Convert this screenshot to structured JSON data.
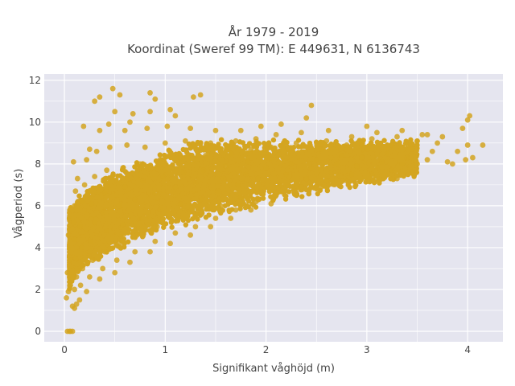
{
  "chart_data": {
    "type": "scatter",
    "title": [
      "År 1979 - 2019",
      "Koordinat (Sweref 99 TM): E 449631, N 6136743"
    ],
    "xlabel": "Signifikant våghöjd (m)",
    "ylabel": "Vågperiod (s)",
    "xlim": [
      -0.2,
      4.35
    ],
    "ylim": [
      -0.5,
      12.3
    ],
    "xticks": [
      0,
      1,
      2,
      3,
      4
    ],
    "yticks": [
      0,
      2,
      4,
      6,
      8,
      10,
      12
    ],
    "grid": true,
    "marker_color": "#D4A520",
    "background_color": "#E5E5EF",
    "points": [
      [
        0.03,
        0.0
      ],
      [
        0.05,
        0.0
      ],
      [
        0.08,
        0.0
      ],
      [
        0.06,
        0.0
      ],
      [
        0.02,
        1.6
      ],
      [
        0.04,
        1.9
      ],
      [
        0.06,
        2.2
      ],
      [
        0.03,
        2.8
      ],
      [
        0.05,
        3.4
      ],
      [
        0.04,
        4.6
      ],
      [
        0.05,
        5.4
      ],
      [
        0.08,
        1.2
      ],
      [
        0.1,
        1.1
      ],
      [
        0.12,
        1.3
      ],
      [
        0.1,
        2.0
      ],
      [
        0.12,
        2.6
      ],
      [
        0.11,
        3.5
      ],
      [
        0.1,
        4.4
      ],
      [
        0.09,
        5.2
      ],
      [
        0.1,
        6.0
      ],
      [
        0.11,
        6.7
      ],
      [
        0.13,
        7.3
      ],
      [
        0.09,
        8.1
      ],
      [
        0.15,
        1.5
      ],
      [
        0.16,
        2.2
      ],
      [
        0.18,
        3.0
      ],
      [
        0.17,
        4.0
      ],
      [
        0.16,
        5.0
      ],
      [
        0.18,
        6.2
      ],
      [
        0.2,
        7.0
      ],
      [
        0.22,
        8.2
      ],
      [
        0.19,
        9.8
      ],
      [
        0.25,
        8.7
      ],
      [
        0.22,
        1.9
      ],
      [
        0.25,
        2.6
      ],
      [
        0.28,
        3.4
      ],
      [
        0.26,
        4.3
      ],
      [
        0.3,
        5.2
      ],
      [
        0.27,
        6.1
      ],
      [
        0.3,
        7.4
      ],
      [
        0.32,
        8.6
      ],
      [
        0.35,
        9.6
      ],
      [
        0.3,
        11.0
      ],
      [
        0.35,
        11.2
      ],
      [
        0.35,
        2.5
      ],
      [
        0.38,
        3.0
      ],
      [
        0.4,
        3.8
      ],
      [
        0.42,
        4.8
      ],
      [
        0.38,
        5.7
      ],
      [
        0.4,
        6.6
      ],
      [
        0.42,
        7.7
      ],
      [
        0.45,
        8.8
      ],
      [
        0.44,
        9.9
      ],
      [
        0.5,
        10.5
      ],
      [
        0.48,
        11.6
      ],
      [
        0.55,
        11.3
      ],
      [
        0.5,
        2.8
      ],
      [
        0.52,
        3.4
      ],
      [
        0.55,
        4.2
      ],
      [
        0.58,
        5.1
      ],
      [
        0.54,
        6.0
      ],
      [
        0.6,
        6.9
      ],
      [
        0.58,
        7.8
      ],
      [
        0.62,
        8.9
      ],
      [
        0.6,
        9.6
      ],
      [
        0.65,
        10.0
      ],
      [
        0.68,
        10.4
      ],
      [
        0.65,
        3.3
      ],
      [
        0.7,
        3.8
      ],
      [
        0.72,
        4.6
      ],
      [
        0.75,
        5.4
      ],
      [
        0.7,
        6.3
      ],
      [
        0.78,
        7.2
      ],
      [
        0.75,
        8.0
      ],
      [
        0.8,
        8.8
      ],
      [
        0.82,
        9.7
      ],
      [
        0.85,
        10.5
      ],
      [
        0.85,
        11.4
      ],
      [
        0.9,
        11.1
      ],
      [
        0.85,
        3.8
      ],
      [
        0.9,
        4.3
      ],
      [
        0.92,
        5.0
      ],
      [
        0.95,
        5.8
      ],
      [
        0.9,
        6.6
      ],
      [
        0.98,
        7.4
      ],
      [
        0.95,
        8.2
      ],
      [
        1.0,
        9.0
      ],
      [
        1.02,
        9.8
      ],
      [
        1.05,
        10.6
      ],
      [
        1.1,
        10.3
      ],
      [
        1.05,
        4.2
      ],
      [
        1.1,
        4.7
      ],
      [
        1.12,
        5.4
      ],
      [
        1.15,
        6.1
      ],
      [
        1.1,
        6.9
      ],
      [
        1.18,
        7.6
      ],
      [
        1.15,
        8.3
      ],
      [
        1.2,
        9.1
      ],
      [
        1.25,
        9.7
      ],
      [
        1.28,
        11.2
      ],
      [
        1.35,
        11.3
      ],
      [
        1.25,
        4.6
      ],
      [
        1.3,
        5.0
      ],
      [
        1.32,
        5.7
      ],
      [
        1.35,
        6.3
      ],
      [
        1.3,
        7.1
      ],
      [
        1.38,
        7.7
      ],
      [
        1.4,
        8.4
      ],
      [
        1.45,
        9.0
      ],
      [
        1.5,
        9.6
      ],
      [
        1.45,
        5.0
      ],
      [
        1.5,
        5.4
      ],
      [
        1.55,
        6.0
      ],
      [
        1.52,
        6.7
      ],
      [
        1.58,
        7.3
      ],
      [
        1.6,
        7.9
      ],
      [
        1.65,
        8.5
      ],
      [
        1.7,
        9.1
      ],
      [
        1.75,
        9.6
      ],
      [
        1.65,
        5.4
      ],
      [
        1.7,
        5.8
      ],
      [
        1.75,
        6.4
      ],
      [
        1.72,
        7.0
      ],
      [
        1.8,
        7.5
      ],
      [
        1.82,
        8.1
      ],
      [
        1.85,
        8.7
      ],
      [
        1.9,
        9.2
      ],
      [
        1.95,
        9.8
      ],
      [
        1.85,
        5.8
      ],
      [
        1.9,
        6.2
      ],
      [
        1.95,
        6.7
      ],
      [
        1.92,
        7.3
      ],
      [
        2.0,
        7.8
      ],
      [
        2.02,
        8.3
      ],
      [
        2.05,
        8.8
      ],
      [
        2.1,
        9.4
      ],
      [
        2.15,
        9.9
      ],
      [
        2.05,
        6.1
      ],
      [
        2.1,
        6.5
      ],
      [
        2.15,
        7.0
      ],
      [
        2.2,
        7.5
      ],
      [
        2.25,
        8.0
      ],
      [
        2.22,
        8.5
      ],
      [
        2.3,
        9.0
      ],
      [
        2.35,
        9.5
      ],
      [
        2.4,
        10.2
      ],
      [
        2.45,
        10.8
      ],
      [
        2.3,
        6.5
      ],
      [
        2.35,
        6.9
      ],
      [
        2.4,
        7.3
      ],
      [
        2.45,
        7.8
      ],
      [
        2.5,
        8.2
      ],
      [
        2.55,
        8.7
      ],
      [
        2.6,
        9.1
      ],
      [
        2.62,
        9.6
      ],
      [
        2.55,
        6.9
      ],
      [
        2.6,
        7.2
      ],
      [
        2.65,
        7.6
      ],
      [
        2.7,
        8.0
      ],
      [
        2.75,
        8.4
      ],
      [
        2.8,
        8.9
      ],
      [
        2.85,
        9.3
      ],
      [
        2.8,
        7.2
      ],
      [
        2.85,
        7.5
      ],
      [
        2.9,
        7.9
      ],
      [
        2.95,
        8.3
      ],
      [
        3.0,
        8.7
      ],
      [
        3.05,
        9.2
      ],
      [
        3.0,
        9.8
      ],
      [
        3.1,
        9.5
      ],
      [
        3.05,
        7.5
      ],
      [
        3.1,
        7.8
      ],
      [
        3.15,
        8.1
      ],
      [
        3.2,
        8.5
      ],
      [
        3.25,
        8.9
      ],
      [
        3.3,
        9.3
      ],
      [
        3.3,
        7.3
      ],
      [
        3.25,
        7.7
      ],
      [
        3.35,
        8.0
      ],
      [
        3.4,
        8.3
      ],
      [
        3.45,
        8.7
      ],
      [
        3.5,
        9.1
      ],
      [
        3.55,
        9.4
      ],
      [
        3.45,
        7.6
      ],
      [
        3.5,
        8.0
      ],
      [
        3.6,
        8.2
      ],
      [
        3.65,
        8.6
      ],
      [
        3.7,
        9.0
      ],
      [
        3.75,
        9.3
      ],
      [
        3.85,
        8.0
      ],
      [
        3.9,
        8.6
      ],
      [
        3.95,
        9.7
      ],
      [
        4.0,
        10.1
      ],
      [
        4.02,
        10.3
      ],
      [
        4.0,
        8.9
      ],
      [
        4.05,
        8.3
      ],
      [
        3.98,
        8.2
      ],
      [
        3.8,
        8.1
      ],
      [
        4.15,
        8.9
      ],
      [
        3.6,
        9.4
      ],
      [
        3.35,
        9.6
      ]
    ]
  }
}
